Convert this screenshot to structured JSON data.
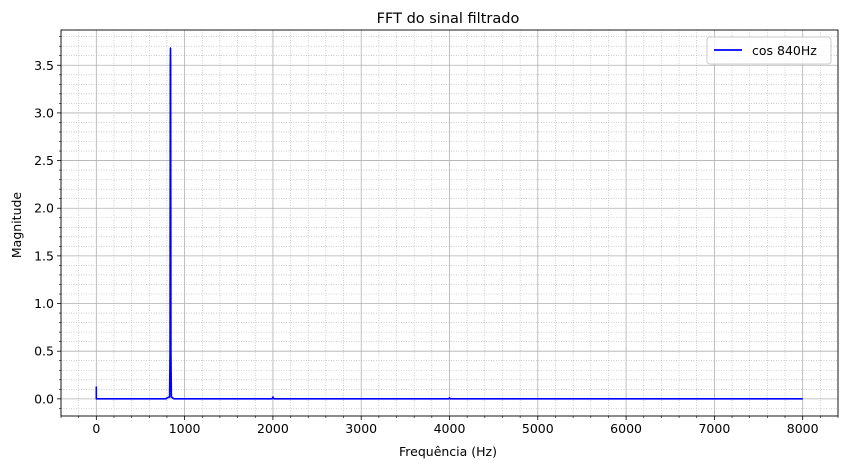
{
  "chart_data": {
    "type": "line",
    "title": "FFT do sinal filtrado",
    "xlabel": "Frequência (Hz)",
    "ylabel": "Magnitude",
    "xlim": [
      -400,
      8400
    ],
    "ylim": [
      -0.18,
      3.87
    ],
    "xticks": [
      0,
      1000,
      2000,
      3000,
      4000,
      5000,
      6000,
      7000,
      8000
    ],
    "xtick_labels": [
      "0",
      "1000",
      "2000",
      "3000",
      "4000",
      "5000",
      "6000",
      "7000",
      "8000"
    ],
    "yticks": [
      0.0,
      0.5,
      1.0,
      1.5,
      2.0,
      2.5,
      3.0,
      3.5
    ],
    "ytick_labels": [
      "0.0",
      "0.5",
      "1.0",
      "1.5",
      "2.0",
      "2.5",
      "3.0",
      "3.5"
    ],
    "grid": "major and minor",
    "legend_position": "top-right",
    "series": [
      {
        "name": "cos 840Hz",
        "color": "#0000ff",
        "x": [
          0,
          0,
          5,
          790,
          800,
          830,
          835,
          838,
          840,
          842,
          845,
          850,
          880,
          1990,
          2000,
          2010,
          3990,
          4000,
          4010,
          8000
        ],
        "y": [
          0.13,
          0.0,
          0.0,
          0.0,
          0.01,
          0.02,
          0.5,
          3.5,
          3.68,
          3.5,
          0.5,
          0.02,
          0.0,
          0.0,
          0.02,
          0.0,
          0.0,
          0.01,
          0.0,
          0.0
        ]
      }
    ]
  }
}
